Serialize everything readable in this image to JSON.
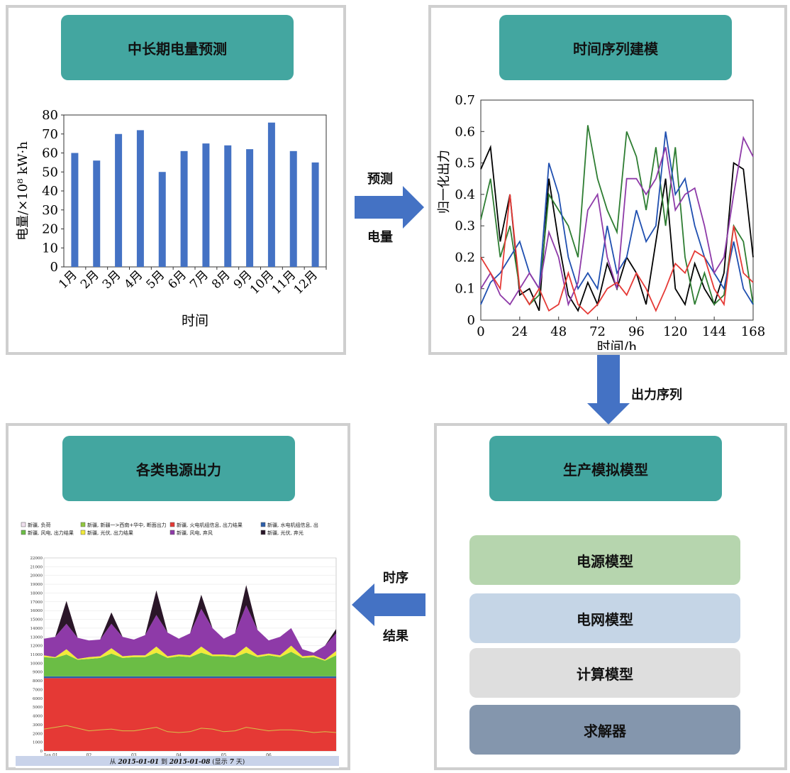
{
  "panels": {
    "forecast": {
      "title": "中长期电量预测"
    },
    "timeseries": {
      "title": "时间序列建模"
    },
    "production": {
      "title": "生产模拟模型",
      "blocks": [
        "电源模型",
        "电网模型",
        "计算模型",
        "求解器"
      ],
      "block_colors": [
        "#b6d5ae",
        "#c5d5e6",
        "#dedede",
        "#8496ad"
      ]
    },
    "output": {
      "title": "各类电源出力"
    }
  },
  "arrows": {
    "forecast": {
      "top": "预测",
      "bottom": "电量"
    },
    "series": {
      "label": "出力序列"
    },
    "result": {
      "top": "时序",
      "bottom": "结果"
    }
  },
  "colors": {
    "header": "#43a6a0",
    "arrow": "#4472c4",
    "bar": "#4472c4",
    "border": "#cfcfcf"
  },
  "chart_data": [
    {
      "type": "bar",
      "categories": [
        "1月",
        "2月",
        "3月",
        "4月",
        "5月",
        "6月",
        "7月",
        "8月",
        "9月",
        "10月",
        "11月",
        "12月"
      ],
      "values": [
        60,
        56,
        70,
        72,
        50,
        61,
        65,
        64,
        62,
        76,
        61,
        55
      ],
      "xlabel": "时间",
      "ylabel": "电量/×10⁸ kW·h",
      "ylim": [
        0,
        80
      ],
      "yticks": [
        "0",
        "10",
        "20",
        "30",
        "40",
        "50",
        "60",
        "70",
        "80"
      ],
      "bar_color": "#4472c4"
    },
    {
      "type": "line",
      "xlabel": "时间/h",
      "ylabel": "归一化出力",
      "xlim": [
        0,
        168
      ],
      "ylim": [
        0,
        0.7
      ],
      "xticks": [
        "0",
        "24",
        "48",
        "72",
        "96",
        "120",
        "144",
        "168"
      ],
      "yticks": [
        "0",
        "0.1",
        "0.2",
        "0.3",
        "0.4",
        "0.5",
        "0.6",
        "0.7"
      ],
      "x": [
        0,
        6,
        12,
        18,
        24,
        30,
        36,
        42,
        48,
        54,
        60,
        66,
        72,
        78,
        84,
        90,
        96,
        102,
        108,
        114,
        120,
        126,
        132,
        138,
        144,
        150,
        156,
        162,
        168
      ],
      "series": [
        {
          "color": "#000000",
          "values": [
            0.48,
            0.55,
            0.25,
            0.4,
            0.08,
            0.1,
            0.03,
            0.45,
            0.25,
            0.08,
            0.03,
            0.12,
            0.05,
            0.18,
            0.1,
            0.2,
            0.15,
            0.05,
            0.25,
            0.45,
            0.1,
            0.05,
            0.18,
            0.1,
            0.05,
            0.15,
            0.5,
            0.48,
            0.2
          ]
        },
        {
          "color": "#2e7d32",
          "values": [
            0.32,
            0.45,
            0.2,
            0.3,
            0.1,
            0.05,
            0.08,
            0.4,
            0.35,
            0.3,
            0.2,
            0.62,
            0.45,
            0.35,
            0.28,
            0.6,
            0.52,
            0.35,
            0.55,
            0.3,
            0.55,
            0.2,
            0.05,
            0.15,
            0.05,
            0.08,
            0.3,
            0.25,
            0.05
          ]
        },
        {
          "color": "#1f4fb0",
          "values": [
            0.05,
            0.12,
            0.15,
            0.2,
            0.25,
            0.15,
            0.1,
            0.5,
            0.4,
            0.2,
            0.1,
            0.15,
            0.1,
            0.3,
            0.15,
            0.2,
            0.35,
            0.25,
            0.3,
            0.6,
            0.4,
            0.45,
            0.3,
            0.2,
            0.15,
            0.1,
            0.25,
            0.1,
            0.05
          ]
        },
        {
          "color": "#8e3aa8",
          "values": [
            0.1,
            0.15,
            0.08,
            0.05,
            0.1,
            0.15,
            0.1,
            0.28,
            0.2,
            0.05,
            0.12,
            0.35,
            0.4,
            0.2,
            0.1,
            0.45,
            0.45,
            0.4,
            0.45,
            0.55,
            0.35,
            0.4,
            0.42,
            0.3,
            0.15,
            0.2,
            0.4,
            0.58,
            0.52
          ]
        },
        {
          "color": "#e53935",
          "values": [
            0.2,
            0.15,
            0.1,
            0.4,
            0.1,
            0.05,
            0.1,
            0.03,
            0.05,
            0.15,
            0.05,
            0.02,
            0.05,
            0.1,
            0.12,
            0.08,
            0.15,
            0.1,
            0.03,
            0.1,
            0.18,
            0.15,
            0.22,
            0.2,
            0.1,
            0.05,
            0.3,
            0.15,
            0.12
          ]
        }
      ]
    },
    {
      "type": "area",
      "legend": [
        {
          "label": "新疆, 负荷",
          "color": "#f0e0ee"
        },
        {
          "label": "新疆, 新疆一>西南+华中, 断面出力",
          "color": "#92c83e"
        },
        {
          "label": "新疆, 火电机组信息, 出力结果",
          "color": "#e53935"
        },
        {
          "label": "新疆, 水电机组信息, 出",
          "color": "#2d5faa"
        },
        {
          "label": "新疆, 风电, 出力结果",
          "color": "#6bbd45"
        },
        {
          "label": "新疆, 光伏, 出力结果",
          "color": "#f2ea3a"
        },
        {
          "label": "新疆, 风电, 弃风",
          "color": "#8e3aa8"
        },
        {
          "label": "新疆, 光伏, 弃光",
          "color": "#2a1628"
        }
      ],
      "yticks": [
        "0",
        "1000",
        "2000",
        "3000",
        "4000",
        "5000",
        "6000",
        "7000",
        "8000",
        "9000",
        "10000",
        "11000",
        "12000",
        "13000",
        "14000",
        "15000",
        "16000",
        "17000",
        "18000",
        "19000",
        "20000",
        "21000",
        "22000"
      ],
      "ylim": [
        0,
        22000
      ],
      "xticks": [
        "Jan 01",
        "02",
        "03",
        "04",
        "05",
        "06"
      ],
      "footer": {
        "prefix": "从",
        "start": "2015-01-01",
        "mid": "到",
        "end": "2015-01-08",
        "suffix": "(显示",
        "days": "7",
        "unit": "天)"
      },
      "x": [
        0,
        0.25,
        0.5,
        0.75,
        1,
        1.25,
        1.5,
        1.75,
        2,
        2.25,
        2.5,
        2.75,
        3,
        3.25,
        3.5,
        3.75,
        4,
        4.25,
        4.5,
        4.75,
        5,
        5.25,
        5.5,
        5.75,
        6,
        6.25,
        6.5
      ],
      "thermal": 8300,
      "hydro_top": 8500,
      "wind_top": [
        10700,
        10600,
        11000,
        10400,
        10500,
        10600,
        11100,
        10600,
        10700,
        10700,
        11200,
        10600,
        10800,
        10700,
        11200,
        10800,
        10800,
        10700,
        11200,
        10700,
        10900,
        10700,
        11300,
        10600,
        10700,
        10300,
        10900
      ],
      "solar_top": [
        10900,
        10700,
        11600,
        10500,
        10700,
        10800,
        11700,
        10800,
        10900,
        10900,
        11900,
        10800,
        11000,
        10900,
        11900,
        11000,
        11000,
        10900,
        11900,
        10900,
        11100,
        10900,
        12000,
        10800,
        10900,
        10400,
        11400
      ],
      "curtail_wind_top": [
        12800,
        13000,
        14500,
        12900,
        12600,
        12700,
        14500,
        13000,
        12700,
        13200,
        15500,
        13500,
        12800,
        13400,
        16200,
        14000,
        12800,
        13400,
        16600,
        13800,
        12600,
        13000,
        14000,
        11600,
        11200,
        12000,
        13400
      ],
      "curtail_solar_top": [
        12800,
        13000,
        17100,
        12900,
        12600,
        12700,
        15800,
        13000,
        12700,
        13200,
        18300,
        13500,
        12800,
        13400,
        17800,
        14000,
        12800,
        13400,
        18900,
        13800,
        12600,
        13000,
        14000,
        11600,
        11200,
        12000,
        13900
      ],
      "load_line": [
        2500,
        2700,
        2900,
        2600,
        2300,
        2400,
        2500,
        2300,
        2300,
        2500,
        2700,
        2200,
        2100,
        2200,
        2600,
        2500,
        2200,
        2300,
        2700,
        2500,
        2300,
        2400,
        2400,
        2300,
        2100,
        2200,
        2100
      ]
    }
  ]
}
